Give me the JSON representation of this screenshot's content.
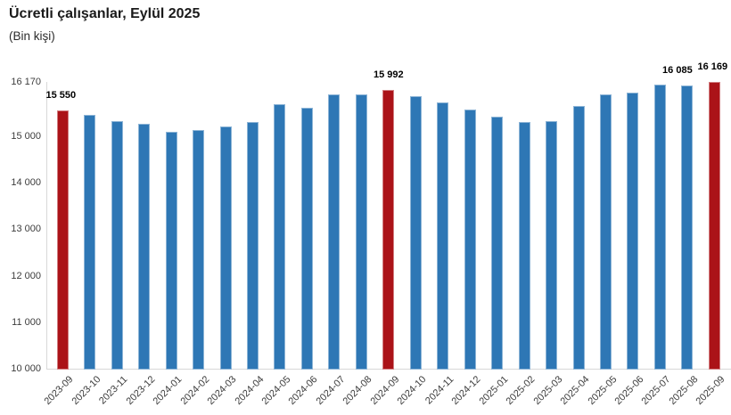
{
  "header": {
    "title": "Ücretli çalışanlar, Eylül 2025",
    "subtitle": "(Bin kişi)"
  },
  "chart_data": {
    "type": "bar",
    "title": "Ücretli çalışanlar, Eylül 2025",
    "subtitle": "(Bin kişi)",
    "xlabel": "",
    "ylabel": "Bin kişi",
    "grid": false,
    "legend": "none",
    "ylim": [
      10000,
      16170
    ],
    "categories": [
      "2023-09",
      "2023-10",
      "2023-11",
      "2023-12",
      "2024-01",
      "2024-02",
      "2024-03",
      "2024-04",
      "2024-05",
      "2024-06",
      "2024-07",
      "2024-08",
      "2024-09",
      "2024-10",
      "2024-11",
      "2024-12",
      "2025-01",
      "2025-02",
      "2025-03",
      "2025-04",
      "2025-05",
      "2025-06",
      "2025-07",
      "2025-08",
      "2025-09"
    ],
    "values": [
      15550,
      15470,
      15330,
      15260,
      15090,
      15130,
      15220,
      15300,
      15690,
      15610,
      15900,
      15900,
      15992,
      15860,
      15730,
      15580,
      15420,
      15310,
      15330,
      15660,
      15900,
      15940,
      16120,
      16085,
      16169
    ],
    "yticks": [
      {
        "value": 10000,
        "label": "10 000"
      },
      {
        "value": 11000,
        "label": "11 000"
      },
      {
        "value": 12000,
        "label": "12 000"
      },
      {
        "value": 13000,
        "label": "13 000"
      },
      {
        "value": 14000,
        "label": "14 000"
      },
      {
        "value": 15000,
        "label": "15 000"
      },
      {
        "value": 16170,
        "label": "16 170"
      }
    ],
    "data_labels": [
      {
        "index": 0,
        "text": "15 550",
        "dx": -2
      },
      {
        "index": 12,
        "text": "15 992",
        "dx": 0
      },
      {
        "index": 23,
        "text": "16 085",
        "dx": -11
      },
      {
        "index": 24,
        "text": "16 169",
        "dx": -2
      }
    ],
    "colors": {
      "bar_default": "#2e77b5",
      "bar_highlight": "#ab1318",
      "axis_line": "#d8d8d8",
      "tick_label": "#3c3c3c",
      "data_label": "#000000"
    },
    "highlight_indices": [
      0,
      12,
      24
    ]
  }
}
